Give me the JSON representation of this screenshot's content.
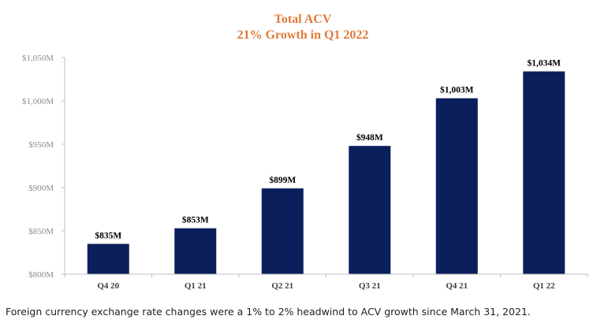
{
  "chart_data": {
    "type": "bar",
    "title": "Total ACV",
    "subtitle": "21% Growth in Q1 2022",
    "categories": [
      "Q4 20",
      "Q1 21",
      "Q2 21",
      "Q3 21",
      "Q4 21",
      "Q1 22"
    ],
    "values": [
      835,
      853,
      899,
      948,
      1003,
      1034
    ],
    "data_labels": [
      "$835M",
      "$853M",
      "$899M",
      "$948M",
      "$1,003M",
      "$1,034M"
    ],
    "yticks": [
      800,
      850,
      900,
      950,
      1000,
      1050
    ],
    "ytick_labels": [
      "$800M",
      "$850M",
      "$900M",
      "$950M",
      "$1,000M",
      "$1,050M"
    ],
    "ylim": [
      800,
      1050
    ],
    "xlabel": "",
    "ylabel": "",
    "grid": false,
    "legend": "none",
    "colors": {
      "bar": "#0b1f5c",
      "title": "#e07b39",
      "axis": "#bfbfbf",
      "ytick": "#8c8c8c",
      "xtick": "#404040",
      "label": "#000000"
    }
  },
  "footnote": "Foreign currency exchange rate changes were a 1% to 2% headwind to ACV growth since March 31, 2021."
}
